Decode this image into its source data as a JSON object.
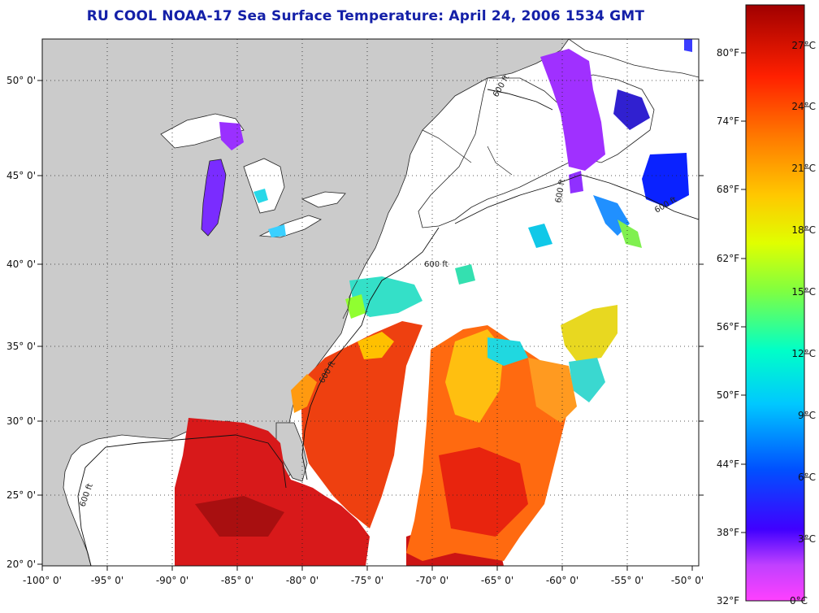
{
  "title": "RU COOL  NOAA-17  Sea Surface Temperature:  April 24, 2006 1534 GMT",
  "map": {
    "lon_ticks": [
      "-100° 0'",
      "-95° 0'",
      "-90° 0'",
      "-85° 0'",
      "-80° 0'",
      "-75° 0'",
      "-70° 0'",
      "-65° 0'",
      "-60° 0'",
      "-55° 0'",
      "-50° 0'"
    ],
    "lat_ticks": [
      "50° 0'",
      "45° 0'",
      "40° 0'",
      "35° 0'",
      "30° 0'",
      "25° 0'",
      "20° 0'"
    ],
    "contour_labels": [
      "600 ft",
      "600 ft",
      "600 ft",
      "600 ft",
      "600 ft",
      "600 ft"
    ]
  },
  "colorbar": {
    "fahrenheit": [
      "80°F",
      "74°F",
      "68°F",
      "62°F",
      "56°F",
      "50°F",
      "44°F",
      "38°F",
      "32°F"
    ],
    "celsius": [
      "27°C",
      "24°C",
      "21°C",
      "18°C",
      "15°C",
      "12°C",
      "9°C",
      "6°C",
      "3°C",
      "0°C"
    ]
  },
  "colors": {
    "title": "#1420a8",
    "land": "#cbcbcb",
    "warm_gulf": "#d8191a",
    "cold": "#7a2cff"
  }
}
